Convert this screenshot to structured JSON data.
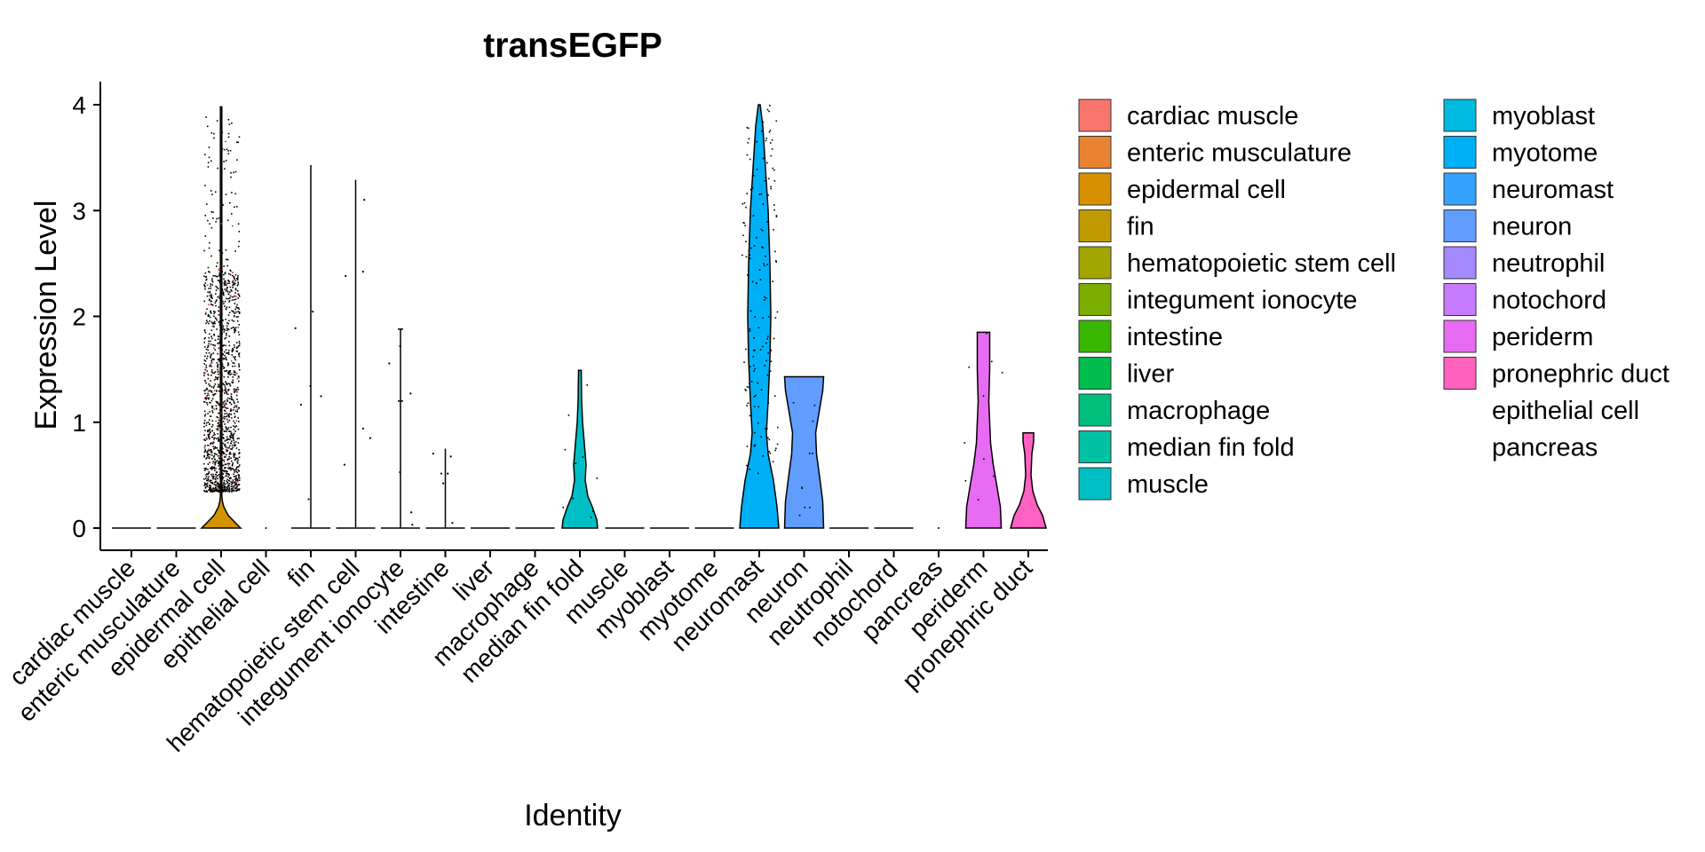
{
  "chart_data": {
    "type": "violin",
    "title": "transEGFP",
    "xlabel": "Identity",
    "ylabel": "Expression Level",
    "ylim": [
      -0.2,
      4.2
    ],
    "yticks": [
      0,
      1,
      2,
      3,
      4
    ],
    "grid": false,
    "legend_position": "right",
    "categories": [
      {
        "name": "cardiac muscle",
        "color": "#F8766D",
        "max": 0,
        "shape": "flat"
      },
      {
        "name": "enteric musculature",
        "color": "#E88526",
        "max": 0,
        "shape": "flat"
      },
      {
        "name": "epidermal cell",
        "color": "#D39200",
        "max": 3.98,
        "shape": "dense-low",
        "bulge_top": 0.25
      },
      {
        "name": "epithelial cell",
        "color": null,
        "max": 0,
        "shape": "point"
      },
      {
        "name": "fin",
        "color": "#B79F00",
        "max": 3.43,
        "shape": "line"
      },
      {
        "name": "hematopoietic stem cell",
        "color": "#93AA00",
        "max": 3.29,
        "shape": "line"
      },
      {
        "name": "integument ionocyte",
        "color": "#5EB300",
        "max": 1.88,
        "shape": "line"
      },
      {
        "name": "intestine",
        "color": "#00BA38",
        "max": 0.75,
        "shape": "line"
      },
      {
        "name": "liver",
        "color": "#00BF74",
        "max": 0,
        "shape": "flat"
      },
      {
        "name": "macrophage",
        "color": "#00C19F",
        "max": 0,
        "shape": "flat"
      },
      {
        "name": "median fin fold",
        "color": "#00BFC4",
        "max": 1.49,
        "shape": "violin-low"
      },
      {
        "name": "muscle",
        "color": "#00B9E3",
        "max": 0,
        "shape": "flat"
      },
      {
        "name": "myoblast",
        "color": "#00ADFA",
        "max": 0,
        "shape": "flat"
      },
      {
        "name": "myotome",
        "color": "#619CFF",
        "max": 0,
        "shape": "flat"
      },
      {
        "name": "neuromast",
        "color": "#00B0F6",
        "max": 4.0,
        "shape": "violin-tall"
      },
      {
        "name": "neuron",
        "color": "#619CFF",
        "max": 1.43,
        "shape": "violin-neuron"
      },
      {
        "name": "neutrophil",
        "color": "#B983FF",
        "max": 0,
        "shape": "flat"
      },
      {
        "name": "notochord",
        "color": "#E76BF3",
        "max": 0,
        "shape": "flat"
      },
      {
        "name": "pancreas",
        "color": null,
        "max": 0,
        "shape": "point"
      },
      {
        "name": "periderm",
        "color": "#E76BF3",
        "max": 1.85,
        "shape": "violin-periderm"
      },
      {
        "name": "pronephric duct",
        "color": "#FF61C3",
        "max": 0.9,
        "shape": "violin-pronephric"
      }
    ],
    "legend": {
      "columns": [
        [
          {
            "label": "cardiac muscle",
            "color": "#F8766D"
          },
          {
            "label": "enteric musculature",
            "color": "#EA8331"
          },
          {
            "label": "epidermal cell",
            "color": "#D89000"
          },
          {
            "label": "fin",
            "color": "#C09B00"
          },
          {
            "label": "hematopoietic stem cell",
            "color": "#A3A500"
          },
          {
            "label": "integument ionocyte",
            "color": "#7CAE00"
          },
          {
            "label": "intestine",
            "color": "#39B600"
          },
          {
            "label": "liver",
            "color": "#00BB4E"
          },
          {
            "label": "macrophage",
            "color": "#00BF7D"
          },
          {
            "label": "median fin fold",
            "color": "#00C1A3"
          },
          {
            "label": "muscle",
            "color": "#00BFC4"
          }
        ],
        [
          {
            "label": "myoblast",
            "color": "#00BAE0"
          },
          {
            "label": "myotome",
            "color": "#00B0F6"
          },
          {
            "label": "neuromast",
            "color": "#35A2FF"
          },
          {
            "label": "neuron",
            "color": "#619CFF"
          },
          {
            "label": "neutrophil",
            "color": "#A58AFF"
          },
          {
            "label": "notochord",
            "color": "#C77CFF"
          },
          {
            "label": "periderm",
            "color": "#E76BF3"
          },
          {
            "label": "pronephric duct",
            "color": "#FF62BC"
          },
          {
            "label": "epithelial cell",
            "color": null
          },
          {
            "label": "pancreas",
            "color": null
          }
        ]
      ]
    }
  }
}
